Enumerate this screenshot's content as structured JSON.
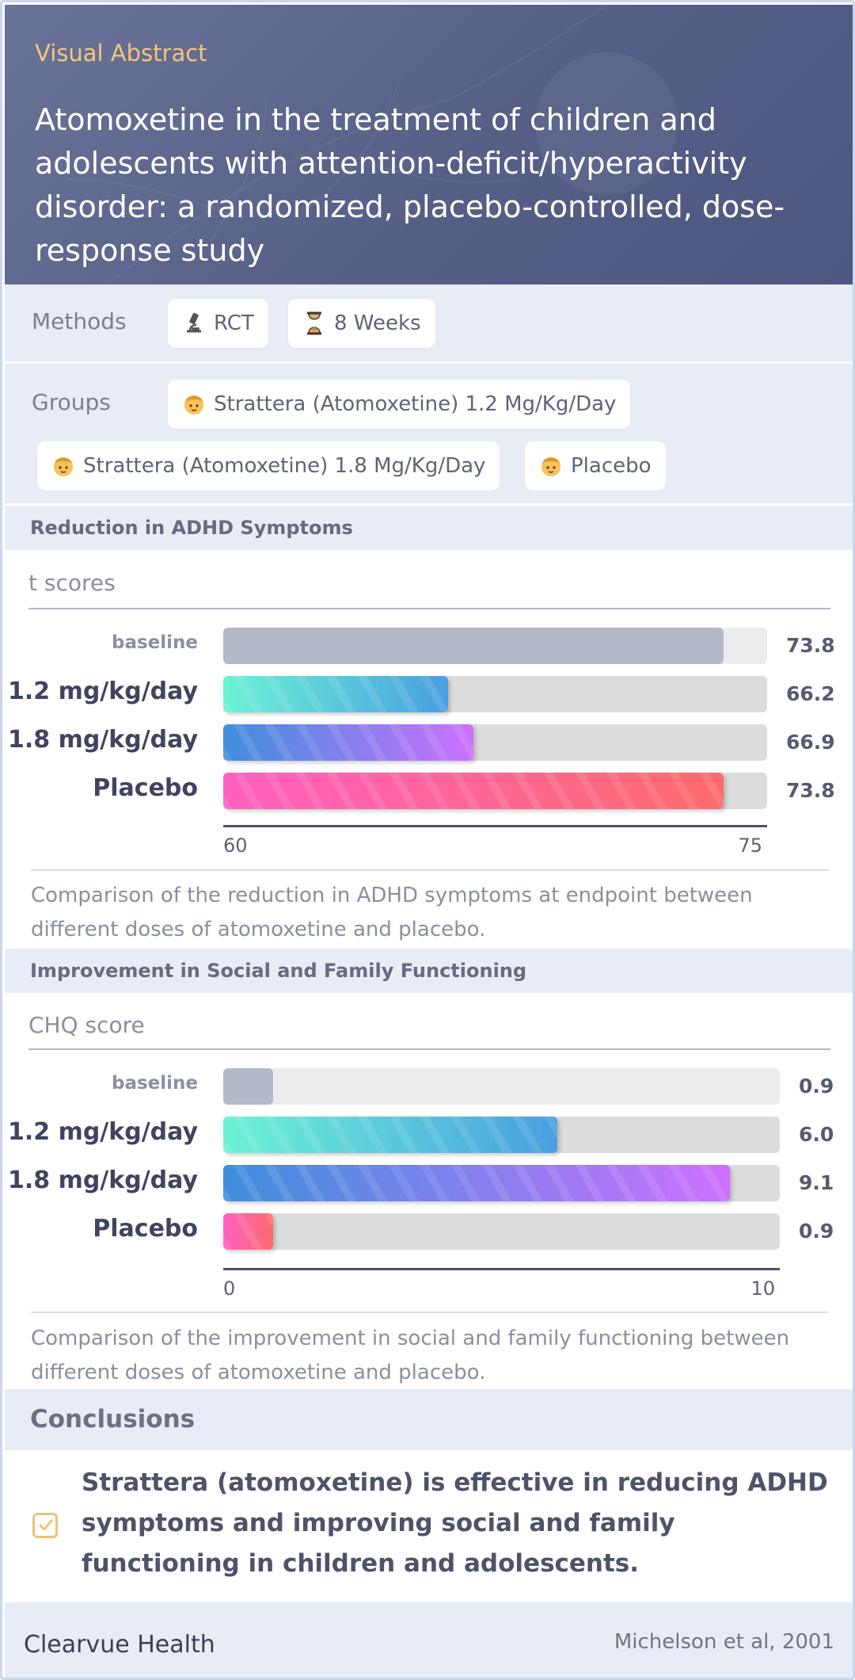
{
  "header": {
    "label": "Visual Abstract",
    "title": "Atomoxetine in the treatment of children and adolescents with attention-deficit/hyperactivity disorder: a randomized, placebo-controlled, dose-response study"
  },
  "methods": {
    "label": "Methods",
    "chips": [
      {
        "icon": "microscope-icon",
        "text": "RCT"
      },
      {
        "icon": "hourglass-icon",
        "text": "8 Weeks"
      }
    ]
  },
  "groups": {
    "label": "Groups",
    "chips": [
      {
        "icon": "child-icon",
        "text": "Strattera (Atomoxetine) 1.2 Mg/Kg/Day"
      },
      {
        "icon": "child-icon",
        "text": "Strattera (Atomoxetine) 1.8 Mg/Kg/Day"
      },
      {
        "icon": "child-icon",
        "text": "Placebo"
      }
    ]
  },
  "chart_data": [
    {
      "type": "bar",
      "title": "Reduction in ADHD Symptoms",
      "ylabel": "t scores",
      "categories": [
        "baseline",
        "1.2 mg/kg/day",
        "1.8 mg/kg/day",
        "Placebo"
      ],
      "values": [
        73.8,
        66.2,
        66.9,
        73.8
      ],
      "value_labels": [
        "73.8",
        "66.2",
        "66.9",
        "73.8"
      ],
      "xlim": [
        60,
        75
      ],
      "tick_labels": [
        "60",
        "75"
      ],
      "caption": "Comparison of the reduction in ADHD symptoms at endpoint between different doses of atomoxetine and placebo."
    },
    {
      "type": "bar",
      "title": "Improvement in Social and Family Functioning",
      "ylabel": "CHQ score",
      "categories": [
        "baseline",
        "1.2 mg/kg/day",
        "1.8 mg/kg/day",
        "Placebo"
      ],
      "values": [
        0.9,
        6.0,
        9.1,
        0.9
      ],
      "value_labels": [
        "0.9",
        "6.0",
        "9.1",
        "0.9"
      ],
      "xlim": [
        0,
        10
      ],
      "tick_labels": [
        "0",
        "10"
      ],
      "caption": "Comparison of the improvement in social and family functioning between different doses of atomoxetine and placebo."
    }
  ],
  "colors": {
    "baseline": "#b3b9c8",
    "dose_low": [
      "#6cf3d5",
      "#4a9fe0"
    ],
    "dose_high": [
      "#3f8fdb",
      "#cc70ff"
    ],
    "placebo": [
      "#ff5fc0",
      "#ff6b6b"
    ],
    "accent": "#f2c77a"
  },
  "conclusions": {
    "label": "Conclusions",
    "icon": "checkbox-icon",
    "text": "Strattera (atomoxetine) is effective in reducing ADHD symptoms and improving social and family functioning in children and adolescents."
  },
  "footer": {
    "brand": "Clearvue Health",
    "citation": "Michelson et al, 2001"
  }
}
